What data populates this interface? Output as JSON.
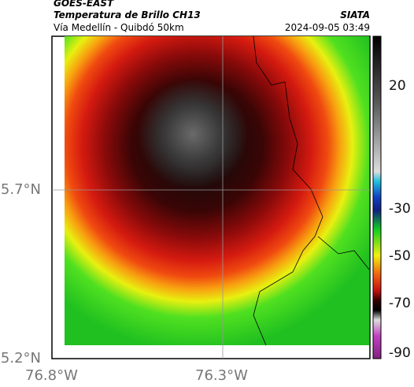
{
  "header": {
    "source": "GOES-EAST",
    "title": "Temperatura de Brillo CH13",
    "organization": "SIATA",
    "subtitle": "Vía Medellín - Quibdó 50km",
    "timestamp": "2024-09-05 03:49"
  },
  "axes": {
    "lat_ticks": [
      "5.7°N",
      "5.2°N"
    ],
    "lon_ticks": [
      "76.8°W",
      "76.3°W"
    ]
  },
  "colorbar": {
    "ticks": [
      20,
      -30,
      -50,
      -70,
      -90
    ]
  }
}
